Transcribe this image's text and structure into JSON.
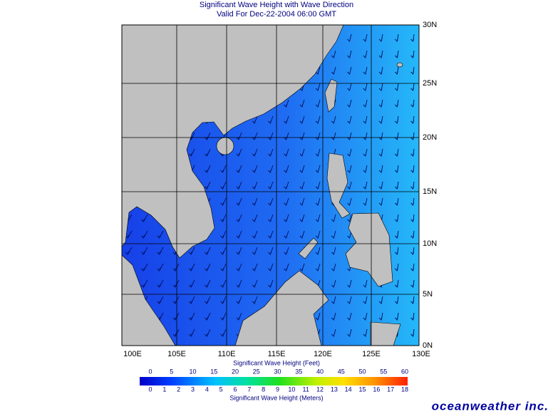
{
  "header": {
    "title": "Significant Wave Height with Wave Direction",
    "subtitle": "Valid For Dec-22-2004 06:00 GMT"
  },
  "map": {
    "lon_labels": [
      "100E",
      "105E",
      "110E",
      "115E",
      "120E",
      "125E",
      "130E"
    ],
    "lat_labels": [
      "30N",
      "25N",
      "20N",
      "15N",
      "10N",
      "5N",
      "0N"
    ]
  },
  "legend": {
    "feet_title": "Significant Wave Height (Feet)",
    "feet_ticks": [
      0,
      5,
      10,
      15,
      20,
      25,
      30,
      35,
      40,
      45,
      50,
      55,
      60
    ],
    "meters_title": "Significant Wave Height (Meters)",
    "meters_ticks": [
      0,
      1,
      2,
      3,
      4,
      5,
      6,
      7,
      8,
      9,
      10,
      11,
      12,
      13,
      14,
      15,
      16,
      17,
      18
    ]
  },
  "footer": {
    "logo": "oceanweather inc."
  }
}
